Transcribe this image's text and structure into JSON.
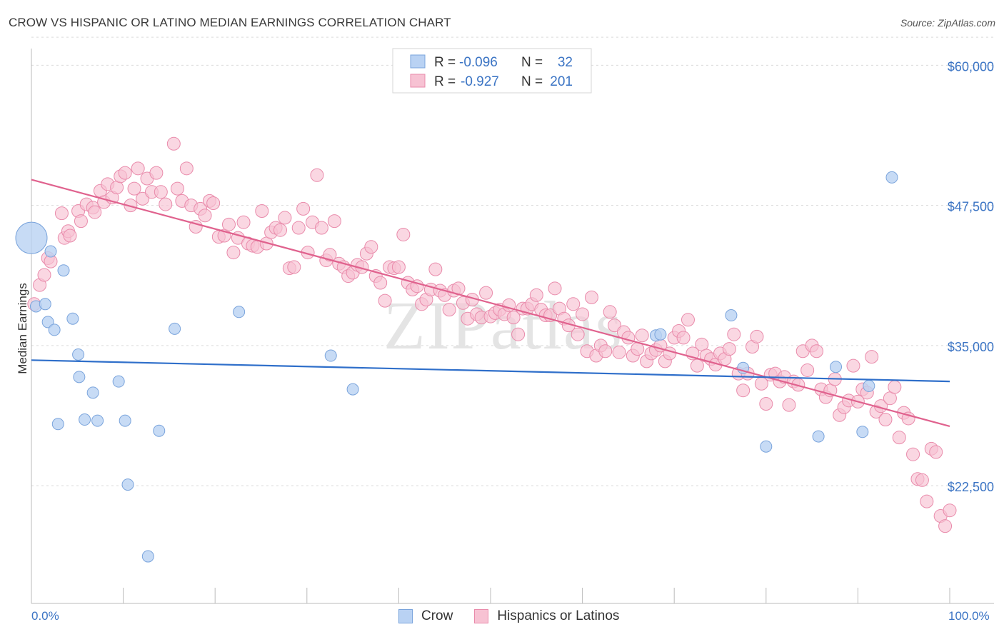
{
  "header": {
    "title": "CROW VS HISPANIC OR LATINO MEDIAN EARNINGS CORRELATION CHART",
    "source": "Source: ZipAtlas.com"
  },
  "watermark": "ZIPatlas",
  "colors": {
    "crow_fill": "#b9d2f3",
    "crow_stroke": "#7aa4dc",
    "crow_line": "#2f6fca",
    "hisp_fill": "#f7c2d3",
    "hisp_stroke": "#e98bab",
    "hisp_line": "#e0628e",
    "axis_text": "#3b74c4",
    "grid": "#d9d9d9"
  },
  "legend": {
    "rows": [
      {
        "r_label": "R =",
        "r_value": "-0.096",
        "n_label": "N =",
        "n_value": "32"
      },
      {
        "r_label": "R =",
        "r_value": "-0.927",
        "n_label": "N =",
        "n_value": "201"
      }
    ]
  },
  "bottom_legend": {
    "items": [
      "Crow",
      "Hispanics or Latinos"
    ]
  },
  "chart_data": {
    "type": "scatter",
    "title": "CROW VS HISPANIC OR LATINO MEDIAN EARNINGS CORRELATION CHART",
    "xlabel": "",
    "ylabel": "Median Earnings",
    "xlim": [
      0,
      100
    ],
    "ylim": [
      12000,
      62000
    ],
    "x_tick_labels": [
      "0.0%",
      "100.0%"
    ],
    "y_ticks": [
      22500,
      35000,
      47500,
      60000
    ],
    "y_tick_labels": [
      "$22,500",
      "$35,000",
      "$47,500",
      "$60,000"
    ],
    "grid": true,
    "legend_position": "top-center",
    "series": [
      {
        "name": "Crow",
        "r": -0.096,
        "n": 32,
        "trend": {
          "x": [
            0,
            100
          ],
          "y": [
            33700,
            31800
          ]
        },
        "points": [
          {
            "x": 0.0,
            "y": 44600,
            "big": true
          },
          {
            "x": 0.5,
            "y": 38500
          },
          {
            "x": 1.5,
            "y": 38700
          },
          {
            "x": 1.8,
            "y": 37100
          },
          {
            "x": 2.1,
            "y": 43400
          },
          {
            "x": 2.5,
            "y": 36400
          },
          {
            "x": 2.9,
            "y": 28000
          },
          {
            "x": 3.5,
            "y": 41700
          },
          {
            "x": 4.5,
            "y": 37400
          },
          {
            "x": 5.1,
            "y": 34200
          },
          {
            "x": 5.2,
            "y": 32200
          },
          {
            "x": 5.8,
            "y": 28400
          },
          {
            "x": 6.7,
            "y": 30800
          },
          {
            "x": 7.2,
            "y": 28300
          },
          {
            "x": 9.5,
            "y": 31800
          },
          {
            "x": 10.2,
            "y": 28300
          },
          {
            "x": 10.5,
            "y": 22600
          },
          {
            "x": 12.7,
            "y": 16200
          },
          {
            "x": 13.9,
            "y": 27400
          },
          {
            "x": 15.6,
            "y": 36500
          },
          {
            "x": 22.6,
            "y": 38000
          },
          {
            "x": 32.6,
            "y": 34100
          },
          {
            "x": 35.0,
            "y": 31100
          },
          {
            "x": 68.0,
            "y": 35900
          },
          {
            "x": 68.5,
            "y": 36000
          },
          {
            "x": 76.2,
            "y": 37700
          },
          {
            "x": 77.5,
            "y": 33000
          },
          {
            "x": 80.0,
            "y": 26000
          },
          {
            "x": 85.7,
            "y": 26900
          },
          {
            "x": 87.6,
            "y": 33100
          },
          {
            "x": 90.5,
            "y": 27300
          },
          {
            "x": 91.2,
            "y": 31400
          },
          {
            "x": 93.7,
            "y": 50000
          }
        ]
      },
      {
        "name": "Hispanics or Latinos",
        "r": -0.927,
        "n": 201,
        "trend": {
          "x": [
            0,
            100
          ],
          "y": [
            49800,
            27800
          ]
        },
        "points": [
          {
            "x": 0.3,
            "y": 38700
          },
          {
            "x": 0.9,
            "y": 40400
          },
          {
            "x": 1.4,
            "y": 41300
          },
          {
            "x": 1.8,
            "y": 42800
          },
          {
            "x": 2.1,
            "y": 42500
          },
          {
            "x": 3.3,
            "y": 46800
          },
          {
            "x": 3.6,
            "y": 44600
          },
          {
            "x": 4.0,
            "y": 45200
          },
          {
            "x": 4.2,
            "y": 44800
          },
          {
            "x": 5.1,
            "y": 47000
          },
          {
            "x": 5.4,
            "y": 46100
          },
          {
            "x": 6.0,
            "y": 47600
          },
          {
            "x": 6.7,
            "y": 47300
          },
          {
            "x": 6.9,
            "y": 46900
          },
          {
            "x": 7.5,
            "y": 48800
          },
          {
            "x": 7.9,
            "y": 47800
          },
          {
            "x": 8.3,
            "y": 49400
          },
          {
            "x": 8.8,
            "y": 48200
          },
          {
            "x": 9.3,
            "y": 49100
          },
          {
            "x": 9.7,
            "y": 50100
          },
          {
            "x": 10.2,
            "y": 50400
          },
          {
            "x": 10.8,
            "y": 47500
          },
          {
            "x": 11.2,
            "y": 49000
          },
          {
            "x": 11.6,
            "y": 50800
          },
          {
            "x": 12.1,
            "y": 48100
          },
          {
            "x": 12.6,
            "y": 49900
          },
          {
            "x": 13.1,
            "y": 48700
          },
          {
            "x": 13.6,
            "y": 50400
          },
          {
            "x": 14.1,
            "y": 48700
          },
          {
            "x": 14.6,
            "y": 47600
          },
          {
            "x": 15.5,
            "y": 53000
          },
          {
            "x": 15.9,
            "y": 49000
          },
          {
            "x": 16.4,
            "y": 47900
          },
          {
            "x": 16.9,
            "y": 50800
          },
          {
            "x": 17.4,
            "y": 47500
          },
          {
            "x": 17.9,
            "y": 45600
          },
          {
            "x": 18.4,
            "y": 47200
          },
          {
            "x": 18.9,
            "y": 46600
          },
          {
            "x": 19.4,
            "y": 47900
          },
          {
            "x": 19.8,
            "y": 47700
          },
          {
            "x": 20.4,
            "y": 44700
          },
          {
            "x": 21.0,
            "y": 44800
          },
          {
            "x": 21.5,
            "y": 45800
          },
          {
            "x": 22.0,
            "y": 43300
          },
          {
            "x": 22.5,
            "y": 44600
          },
          {
            "x": 23.1,
            "y": 46000
          },
          {
            "x": 23.6,
            "y": 44100
          },
          {
            "x": 24.1,
            "y": 43900
          },
          {
            "x": 24.6,
            "y": 43800
          },
          {
            "x": 25.1,
            "y": 47000
          },
          {
            "x": 25.6,
            "y": 44100
          },
          {
            "x": 26.1,
            "y": 45100
          },
          {
            "x": 26.6,
            "y": 45500
          },
          {
            "x": 27.1,
            "y": 45300
          },
          {
            "x": 27.6,
            "y": 46400
          },
          {
            "x": 28.1,
            "y": 41900
          },
          {
            "x": 28.6,
            "y": 42000
          },
          {
            "x": 29.1,
            "y": 45500
          },
          {
            "x": 29.6,
            "y": 47200
          },
          {
            "x": 30.1,
            "y": 43300
          },
          {
            "x": 30.6,
            "y": 46000
          },
          {
            "x": 31.1,
            "y": 50200
          },
          {
            "x": 31.6,
            "y": 45500
          },
          {
            "x": 32.1,
            "y": 42600
          },
          {
            "x": 32.5,
            "y": 43100
          },
          {
            "x": 33.0,
            "y": 46100
          },
          {
            "x": 33.5,
            "y": 42300
          },
          {
            "x": 34.0,
            "y": 42000
          },
          {
            "x": 34.5,
            "y": 41200
          },
          {
            "x": 35.0,
            "y": 41500
          },
          {
            "x": 35.5,
            "y": 42200
          },
          {
            "x": 36.0,
            "y": 42000
          },
          {
            "x": 36.5,
            "y": 43200
          },
          {
            "x": 37.0,
            "y": 43800
          },
          {
            "x": 37.5,
            "y": 41200
          },
          {
            "x": 38.0,
            "y": 40600
          },
          {
            "x": 38.5,
            "y": 39000
          },
          {
            "x": 39.0,
            "y": 42000
          },
          {
            "x": 39.5,
            "y": 41900
          },
          {
            "x": 40.0,
            "y": 42000
          },
          {
            "x": 40.5,
            "y": 44900
          },
          {
            "x": 41.0,
            "y": 40600
          },
          {
            "x": 41.5,
            "y": 40000
          },
          {
            "x": 42.0,
            "y": 40300
          },
          {
            "x": 42.5,
            "y": 38700
          },
          {
            "x": 43.0,
            "y": 39100
          },
          {
            "x": 43.5,
            "y": 40000
          },
          {
            "x": 44.0,
            "y": 41800
          },
          {
            "x": 44.5,
            "y": 39900
          },
          {
            "x": 45.0,
            "y": 39500
          },
          {
            "x": 45.5,
            "y": 38200
          },
          {
            "x": 46.0,
            "y": 39900
          },
          {
            "x": 46.5,
            "y": 40100
          },
          {
            "x": 47.0,
            "y": 38800
          },
          {
            "x": 47.5,
            "y": 37400
          },
          {
            "x": 48.0,
            "y": 39100
          },
          {
            "x": 48.5,
            "y": 37800
          },
          {
            "x": 49.0,
            "y": 37500
          },
          {
            "x": 49.5,
            "y": 39700
          },
          {
            "x": 50.0,
            "y": 37600
          },
          {
            "x": 50.5,
            "y": 37900
          },
          {
            "x": 51.0,
            "y": 38200
          },
          {
            "x": 51.5,
            "y": 37800
          },
          {
            "x": 52.0,
            "y": 38600
          },
          {
            "x": 52.5,
            "y": 37500
          },
          {
            "x": 53.0,
            "y": 36000
          },
          {
            "x": 53.5,
            "y": 38300
          },
          {
            "x": 54.0,
            "y": 38300
          },
          {
            "x": 54.5,
            "y": 38700
          },
          {
            "x": 55.0,
            "y": 39500
          },
          {
            "x": 55.5,
            "y": 38200
          },
          {
            "x": 56.0,
            "y": 37700
          },
          {
            "x": 56.5,
            "y": 37700
          },
          {
            "x": 57.0,
            "y": 40100
          },
          {
            "x": 57.5,
            "y": 38300
          },
          {
            "x": 58.0,
            "y": 37400
          },
          {
            "x": 58.5,
            "y": 36800
          },
          {
            "x": 59.0,
            "y": 38700
          },
          {
            "x": 59.5,
            "y": 36000
          },
          {
            "x": 60.0,
            "y": 37800
          },
          {
            "x": 60.5,
            "y": 34500
          },
          {
            "x": 61.0,
            "y": 39300
          },
          {
            "x": 61.5,
            "y": 34100
          },
          {
            "x": 62.0,
            "y": 35000
          },
          {
            "x": 62.5,
            "y": 34500
          },
          {
            "x": 63.0,
            "y": 38000
          },
          {
            "x": 63.5,
            "y": 36800
          },
          {
            "x": 64.0,
            "y": 34400
          },
          {
            "x": 64.5,
            "y": 36200
          },
          {
            "x": 65.0,
            "y": 35700
          },
          {
            "x": 65.5,
            "y": 34100
          },
          {
            "x": 66.0,
            "y": 34700
          },
          {
            "x": 66.5,
            "y": 35900
          },
          {
            "x": 67.0,
            "y": 33600
          },
          {
            "x": 67.5,
            "y": 34300
          },
          {
            "x": 68.0,
            "y": 34600
          },
          {
            "x": 68.5,
            "y": 35000
          },
          {
            "x": 69.0,
            "y": 33600
          },
          {
            "x": 69.5,
            "y": 34300
          },
          {
            "x": 70.0,
            "y": 35700
          },
          {
            "x": 70.5,
            "y": 36300
          },
          {
            "x": 71.0,
            "y": 35700
          },
          {
            "x": 71.5,
            "y": 37300
          },
          {
            "x": 72.0,
            "y": 34300
          },
          {
            "x": 72.5,
            "y": 33200
          },
          {
            "x": 73.0,
            "y": 35100
          },
          {
            "x": 73.5,
            "y": 34100
          },
          {
            "x": 74.0,
            "y": 33800
          },
          {
            "x": 74.5,
            "y": 33300
          },
          {
            "x": 75.0,
            "y": 34300
          },
          {
            "x": 75.5,
            "y": 33800
          },
          {
            "x": 76.0,
            "y": 34700
          },
          {
            "x": 76.5,
            "y": 36000
          },
          {
            "x": 77.0,
            "y": 32500
          },
          {
            "x": 77.5,
            "y": 31000
          },
          {
            "x": 78.0,
            "y": 32500
          },
          {
            "x": 78.5,
            "y": 34900
          },
          {
            "x": 79.0,
            "y": 35800
          },
          {
            "x": 79.5,
            "y": 31600
          },
          {
            "x": 80.0,
            "y": 29800
          },
          {
            "x": 80.5,
            "y": 32400
          },
          {
            "x": 81.0,
            "y": 32500
          },
          {
            "x": 81.5,
            "y": 31800
          },
          {
            "x": 82.0,
            "y": 32200
          },
          {
            "x": 82.5,
            "y": 29700
          },
          {
            "x": 83.0,
            "y": 31800
          },
          {
            "x": 83.5,
            "y": 31500
          },
          {
            "x": 84.0,
            "y": 34500
          },
          {
            "x": 84.5,
            "y": 32800
          },
          {
            "x": 85.0,
            "y": 35000
          },
          {
            "x": 85.5,
            "y": 34500
          },
          {
            "x": 86.0,
            "y": 31100
          },
          {
            "x": 86.5,
            "y": 30400
          },
          {
            "x": 87.0,
            "y": 31000
          },
          {
            "x": 87.5,
            "y": 32000
          },
          {
            "x": 88.0,
            "y": 28800
          },
          {
            "x": 88.5,
            "y": 29500
          },
          {
            "x": 89.0,
            "y": 30100
          },
          {
            "x": 89.5,
            "y": 33200
          },
          {
            "x": 90.0,
            "y": 30000
          },
          {
            "x": 90.5,
            "y": 31100
          },
          {
            "x": 91.0,
            "y": 30800
          },
          {
            "x": 91.5,
            "y": 34000
          },
          {
            "x": 92.0,
            "y": 29100
          },
          {
            "x": 92.5,
            "y": 29600
          },
          {
            "x": 93.0,
            "y": 28400
          },
          {
            "x": 93.5,
            "y": 30300
          },
          {
            "x": 94.0,
            "y": 31300
          },
          {
            "x": 94.5,
            "y": 26800
          },
          {
            "x": 95.0,
            "y": 29000
          },
          {
            "x": 95.5,
            "y": 28500
          },
          {
            "x": 96.0,
            "y": 25300
          },
          {
            "x": 96.5,
            "y": 23100
          },
          {
            "x": 97.0,
            "y": 23000
          },
          {
            "x": 97.5,
            "y": 21100
          },
          {
            "x": 98.0,
            "y": 25800
          },
          {
            "x": 98.5,
            "y": 25500
          },
          {
            "x": 99.0,
            "y": 19800
          },
          {
            "x": 99.5,
            "y": 18900
          },
          {
            "x": 100.0,
            "y": 20300
          }
        ]
      }
    ]
  }
}
